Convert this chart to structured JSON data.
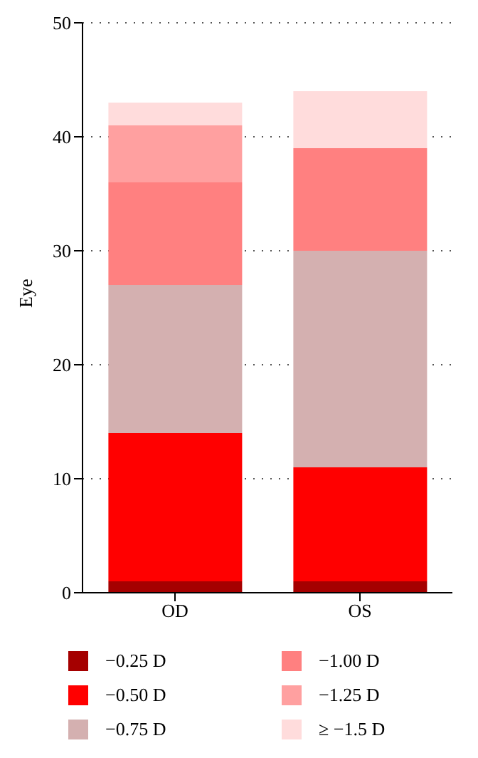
{
  "chart_data": {
    "type": "bar",
    "stacked": true,
    "ylabel": "Eye",
    "categories": [
      "OD",
      "OS"
    ],
    "series": [
      {
        "name": "−0.25 D",
        "color": "#a50000",
        "values": [
          1,
          1
        ]
      },
      {
        "name": "−0.50 D",
        "color": "#ff0000",
        "values": [
          13,
          10
        ]
      },
      {
        "name": "−0.75 D",
        "color": "#d4b0b0",
        "values": [
          13,
          19
        ]
      },
      {
        "name": "−1.00 D",
        "color": "#ff8080",
        "values": [
          9,
          9
        ]
      },
      {
        "name": "−1.25 D",
        "color": "#ffa0a0",
        "values": [
          5,
          0
        ]
      },
      {
        "name": "≥ −1.5 D",
        "color": "#ffdcdc",
        "values": [
          2,
          5
        ]
      }
    ],
    "ylim": [
      0,
      50
    ],
    "yticks": [
      0,
      10,
      20,
      30,
      40,
      50
    ],
    "grid": "y",
    "legend": "bottom"
  }
}
